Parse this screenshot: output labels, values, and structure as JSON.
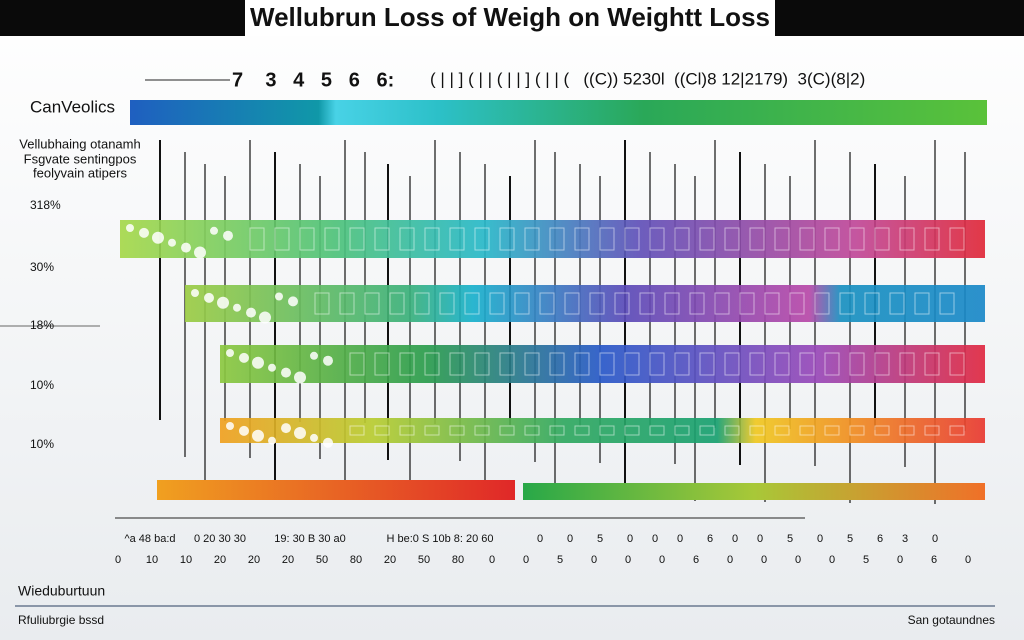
{
  "header": {
    "title": "Wellubrun Loss  of Weigh on Weightt Loss",
    "scale_left": "7    3   4   5   6   6:",
    "scale_right": "( | | ] ( | | ( | | ] ( | | (   ((C)) 5230l  ((Cl)8 12|2179)  3(C)(8|2)"
  },
  "legend": {
    "label": "CanVeolics"
  },
  "side_note": {
    "lines": [
      "Vellubhaing otanamh",
      "Fsgvate sentingpos",
      "feolyvain atipers"
    ]
  },
  "row_labels": [
    "318%",
    "30%",
    "18%",
    "10%",
    "10%"
  ],
  "bottom_axis": {
    "top_labels": [
      "^a 48 ba:d",
      "0 20 30 30",
      "19: 30 B 30 a0",
      "H be:0 S 10b 8: 20 60",
      "0",
      "0",
      "5",
      "0",
      "0",
      "0",
      "6",
      "0",
      "0",
      "5",
      "0",
      "5",
      "6",
      "3",
      "0"
    ],
    "bottom_labels": [
      "0",
      "10",
      "10",
      "20",
      "20",
      "20",
      "50",
      "80",
      "20",
      "50",
      "80",
      "0",
      "0",
      "5",
      "0",
      "0",
      "0",
      "6",
      "0",
      "0",
      "0",
      "0",
      "5",
      "0",
      "6",
      "0"
    ]
  },
  "footer": {
    "left_title": "Wieduburtuun",
    "left_sub": "Rfuliubrgie bssd",
    "right": "San gotaundnes"
  }
}
